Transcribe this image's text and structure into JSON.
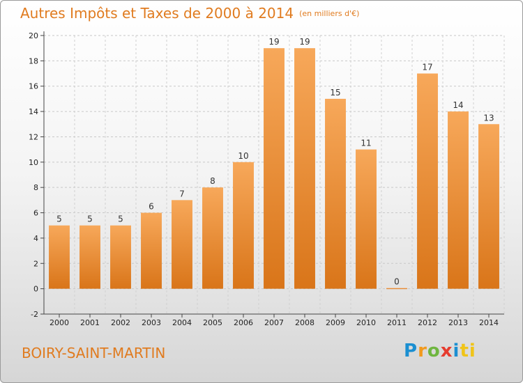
{
  "chart_data": {
    "type": "bar",
    "title": "Autres Impôts et Taxes de 2000 à 2014",
    "subtitle": "(en milliers d'€)",
    "categories": [
      "2000",
      "2001",
      "2002",
      "2003",
      "2004",
      "2005",
      "2006",
      "2007",
      "2008",
      "2009",
      "2010",
      "2011",
      "2012",
      "2013",
      "2014"
    ],
    "values": [
      5,
      5,
      5,
      6,
      7,
      8,
      10,
      19,
      19,
      15,
      11,
      0,
      17,
      14,
      13
    ],
    "ylim": [
      -2,
      20
    ],
    "yticks": [
      -2,
      0,
      2,
      4,
      6,
      8,
      10,
      12,
      14,
      16,
      18,
      20
    ],
    "grid": "horizontal-dashed",
    "bar_color_light": "#f7a85a",
    "bar_color_dark": "#d97519"
  },
  "footer": {
    "commune": "BOIRY-SAINT-MARTIN",
    "logo": [
      "P",
      "r",
      "o",
      "x",
      "i",
      "ti"
    ]
  }
}
